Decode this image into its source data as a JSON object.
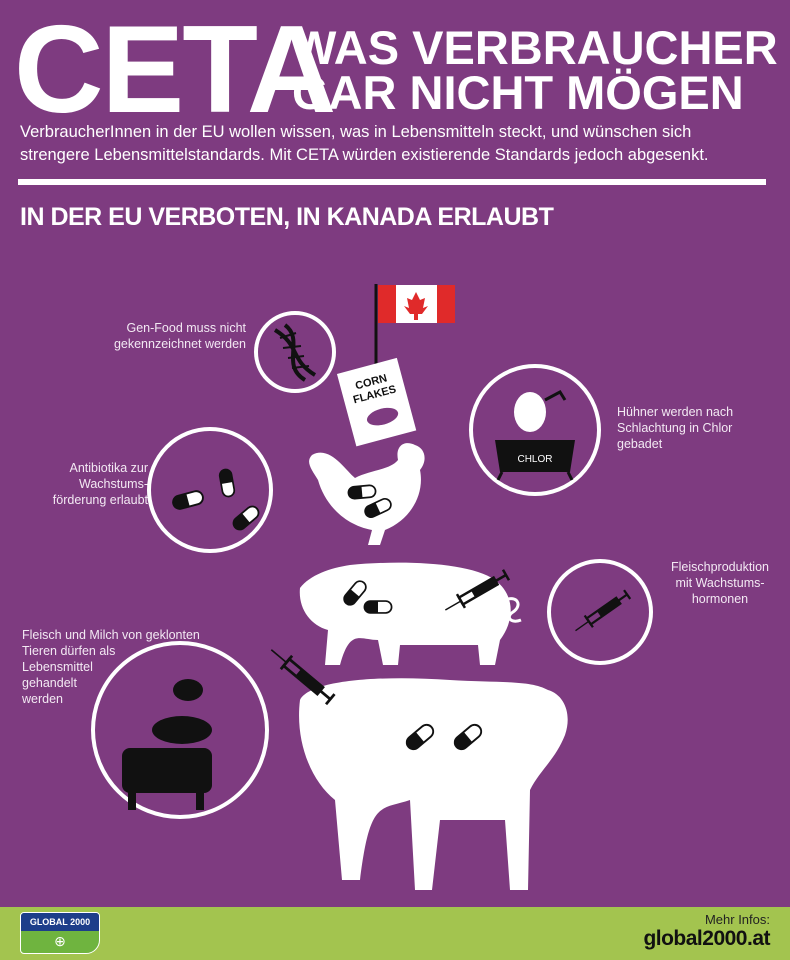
{
  "header": {
    "logo_word": "CETA",
    "title_line1": "WAS VERBRAUCHER",
    "title_line2": "GAR NICHT MÖGEN",
    "intro_line1": "VerbraucherInnen in der EU wollen wissen, was in Lebensmitteln steckt, und wünschen sich",
    "intro_line2": "strengere Lebensmittelstandards. Mit CETA würden existierende Standards jedoch abgesenkt."
  },
  "section_heading": "IN DER EU VERBOTEN, IN KANADA ERLAUBT",
  "items": [
    {
      "icon": "dna-icon",
      "lines": [
        "Gen-Food muss nicht",
        "gekennzeichnet werden"
      ]
    },
    {
      "icon": "pills-icon",
      "lines": [
        "Antibiotika zur",
        "Wachstums-",
        "förderung erlaubt"
      ]
    },
    {
      "icon": "chlorine-bath-icon",
      "lines": [
        "Hühner werden nach",
        "Schlachtung in Chlor",
        "gebadet"
      ],
      "badge": "CHLOR"
    },
    {
      "icon": "syringe-icon",
      "lines": [
        "Fleischproduktion",
        "mit Wachstums-",
        "hormonen"
      ]
    },
    {
      "icon": "cloned-animals-icon",
      "lines": [
        "Fleisch und Milch von geklonten",
        "Tieren dürfen als",
        "Lebensmittel",
        "gehandelt",
        "werden"
      ]
    }
  ],
  "illustration": {
    "cereal_box_text": [
      "CORN",
      "FLAKES"
    ],
    "flag": "canada-flag"
  },
  "footer": {
    "logo_text": "GLOBAL 2000",
    "more_info_label": "Mehr Infos:",
    "url": "global2000.at"
  },
  "colors": {
    "background": "#7e3b80",
    "footer": "#a3c44f",
    "logo_blue": "#1d3e8a",
    "flag_red": "#e02a2a"
  }
}
